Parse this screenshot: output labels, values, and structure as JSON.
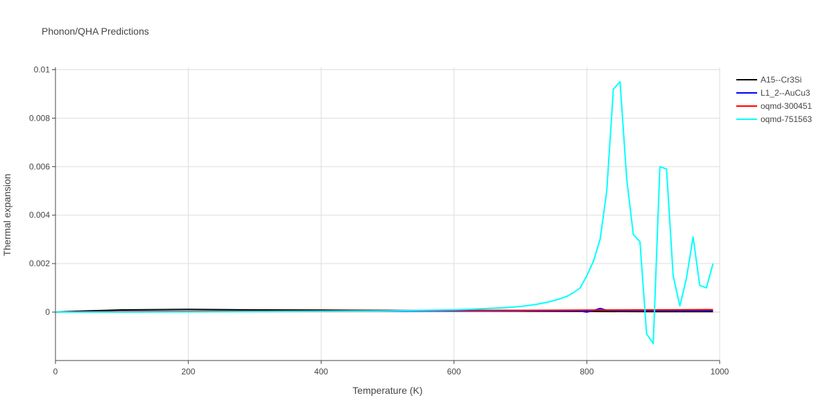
{
  "chart_data": {
    "type": "line",
    "title": "Phonon/QHA Predictions",
    "xlabel": "Temperature (K)",
    "ylabel": "Thermal expansion",
    "xlim": [
      0,
      1000
    ],
    "ylim": [
      -0.002,
      0.0101
    ],
    "x_ticks": [
      0,
      200,
      400,
      600,
      800,
      1000
    ],
    "x_tick_labels": [
      "0",
      "200",
      "400",
      "600",
      "800",
      "1000"
    ],
    "y_ticks": [
      0,
      0.002,
      0.004,
      0.006,
      0.008,
      0.01
    ],
    "y_tick_labels": [
      "0",
      "0.002",
      "0.004",
      "0.006",
      "0.008",
      "0.01"
    ],
    "grid": true,
    "legend_position": "top-right",
    "series": [
      {
        "name": "A15--Cr3Si",
        "color": "#000000",
        "x": [
          0,
          20,
          50,
          100,
          150,
          200,
          250,
          300,
          400,
          500,
          600,
          700,
          800,
          900,
          990
        ],
        "y": [
          0,
          2e-05,
          5e-05,
          9e-05,
          0.0001,
          0.00011,
          0.0001,
          9e-05,
          8e-05,
          7e-05,
          5e-05,
          4e-05,
          3e-05,
          2e-05,
          2e-05
        ]
      },
      {
        "name": "L1_2--AuCu3",
        "color": "#0000ff",
        "x": [
          0,
          50,
          100,
          200,
          300,
          400,
          500,
          600,
          700,
          790,
          800,
          810,
          820,
          830,
          850,
          900,
          990
        ],
        "y": [
          0,
          1e-05,
          2e-05,
          3e-05,
          3e-05,
          4e-05,
          4e-05,
          5e-05,
          5e-05,
          5e-05,
          0.0,
          6e-05,
          0.00015,
          7e-05,
          6e-05,
          6e-05,
          6e-05
        ]
      },
      {
        "name": "oqmd-300451",
        "color": "#ff0000",
        "x": [
          0,
          50,
          100,
          200,
          300,
          400,
          500,
          600,
          700,
          800,
          900,
          990
        ],
        "y": [
          0,
          1e-05,
          2e-05,
          3e-05,
          4e-05,
          5e-05,
          6e-05,
          7e-05,
          7e-05,
          8e-05,
          9e-05,
          0.0001
        ]
      },
      {
        "name": "oqmd-751563",
        "color": "#00ffff",
        "x": [
          0,
          50,
          100,
          200,
          300,
          400,
          500,
          600,
          640,
          680,
          700,
          720,
          740,
          760,
          770,
          780,
          790,
          800,
          810,
          820,
          830,
          840,
          850,
          860,
          870,
          880,
          890,
          900,
          910,
          920,
          930,
          940,
          950,
          960,
          970,
          980,
          990
        ],
        "y": [
          0,
          0.0,
          0.0,
          1e-05,
          2e-05,
          3e-05,
          5e-05,
          9e-05,
          0.00013,
          0.00019,
          0.00023,
          0.0003,
          0.0004,
          0.00055,
          0.00065,
          0.0008,
          0.001,
          0.0015,
          0.0021,
          0.003,
          0.005,
          0.0092,
          0.0095,
          0.0055,
          0.0032,
          0.0029,
          -0.0009,
          -0.0013,
          0.006,
          0.0059,
          0.0015,
          0.00025,
          0.0014,
          0.0031,
          0.0011,
          0.001,
          0.002
        ]
      }
    ]
  }
}
